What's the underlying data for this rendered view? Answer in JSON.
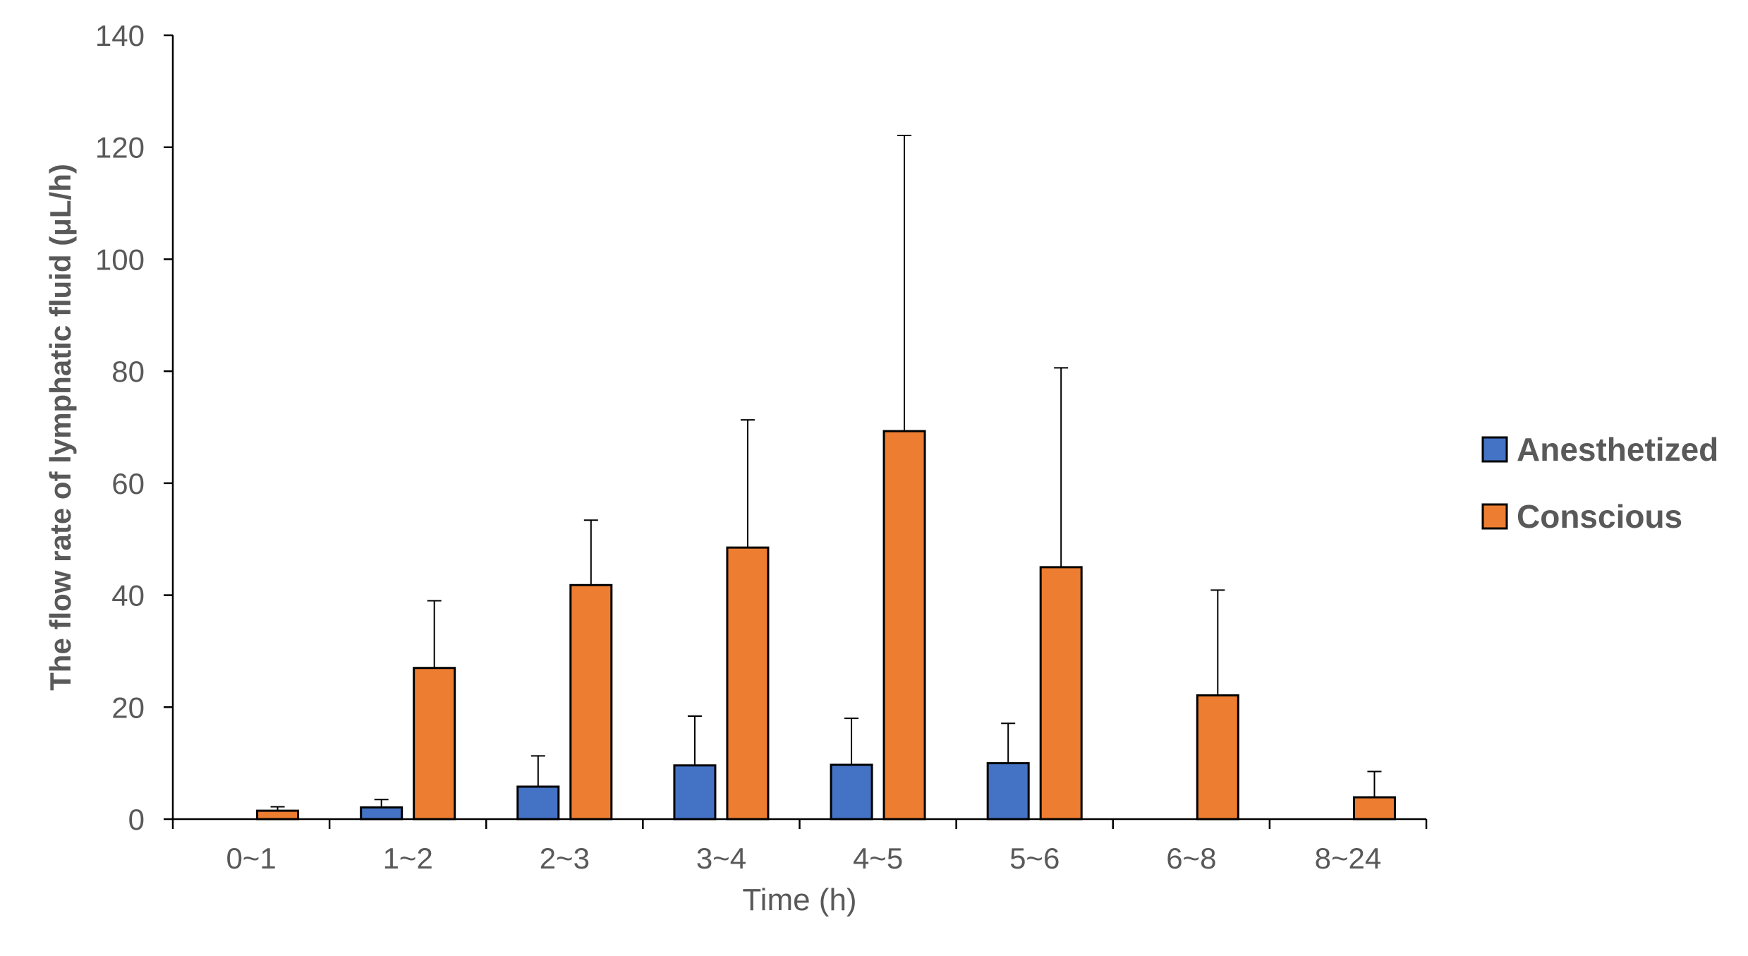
{
  "chart_data": {
    "type": "bar",
    "title": "",
    "xlabel": "Time  (h)",
    "ylabel": "The flow rate of lymphatic fluid (μL/h)",
    "ylim": [
      0,
      140
    ],
    "y_ticks": [
      0,
      20,
      40,
      60,
      80,
      100,
      120,
      140
    ],
    "categories": [
      "0~1",
      "1~2",
      "2~3",
      "3~4",
      "4~5",
      "5~6",
      "6~8",
      "8~24"
    ],
    "series": [
      {
        "name": "Anesthetized",
        "color": "#4472C4",
        "values": [
          null,
          2.1,
          5.8,
          9.6,
          9.7,
          10.0,
          null,
          null
        ],
        "error": [
          null,
          1.4,
          5.5,
          8.8,
          8.3,
          7.1,
          null,
          null
        ]
      },
      {
        "name": "Conscious",
        "color": "#ED7D31",
        "values": [
          1.5,
          27.0,
          41.8,
          48.5,
          69.3,
          45.0,
          22.1,
          3.9
        ],
        "error": [
          0.7,
          12.0,
          11.6,
          22.8,
          52.8,
          35.6,
          18.8,
          4.6
        ]
      }
    ],
    "grid": false,
    "legend_position": "right"
  }
}
